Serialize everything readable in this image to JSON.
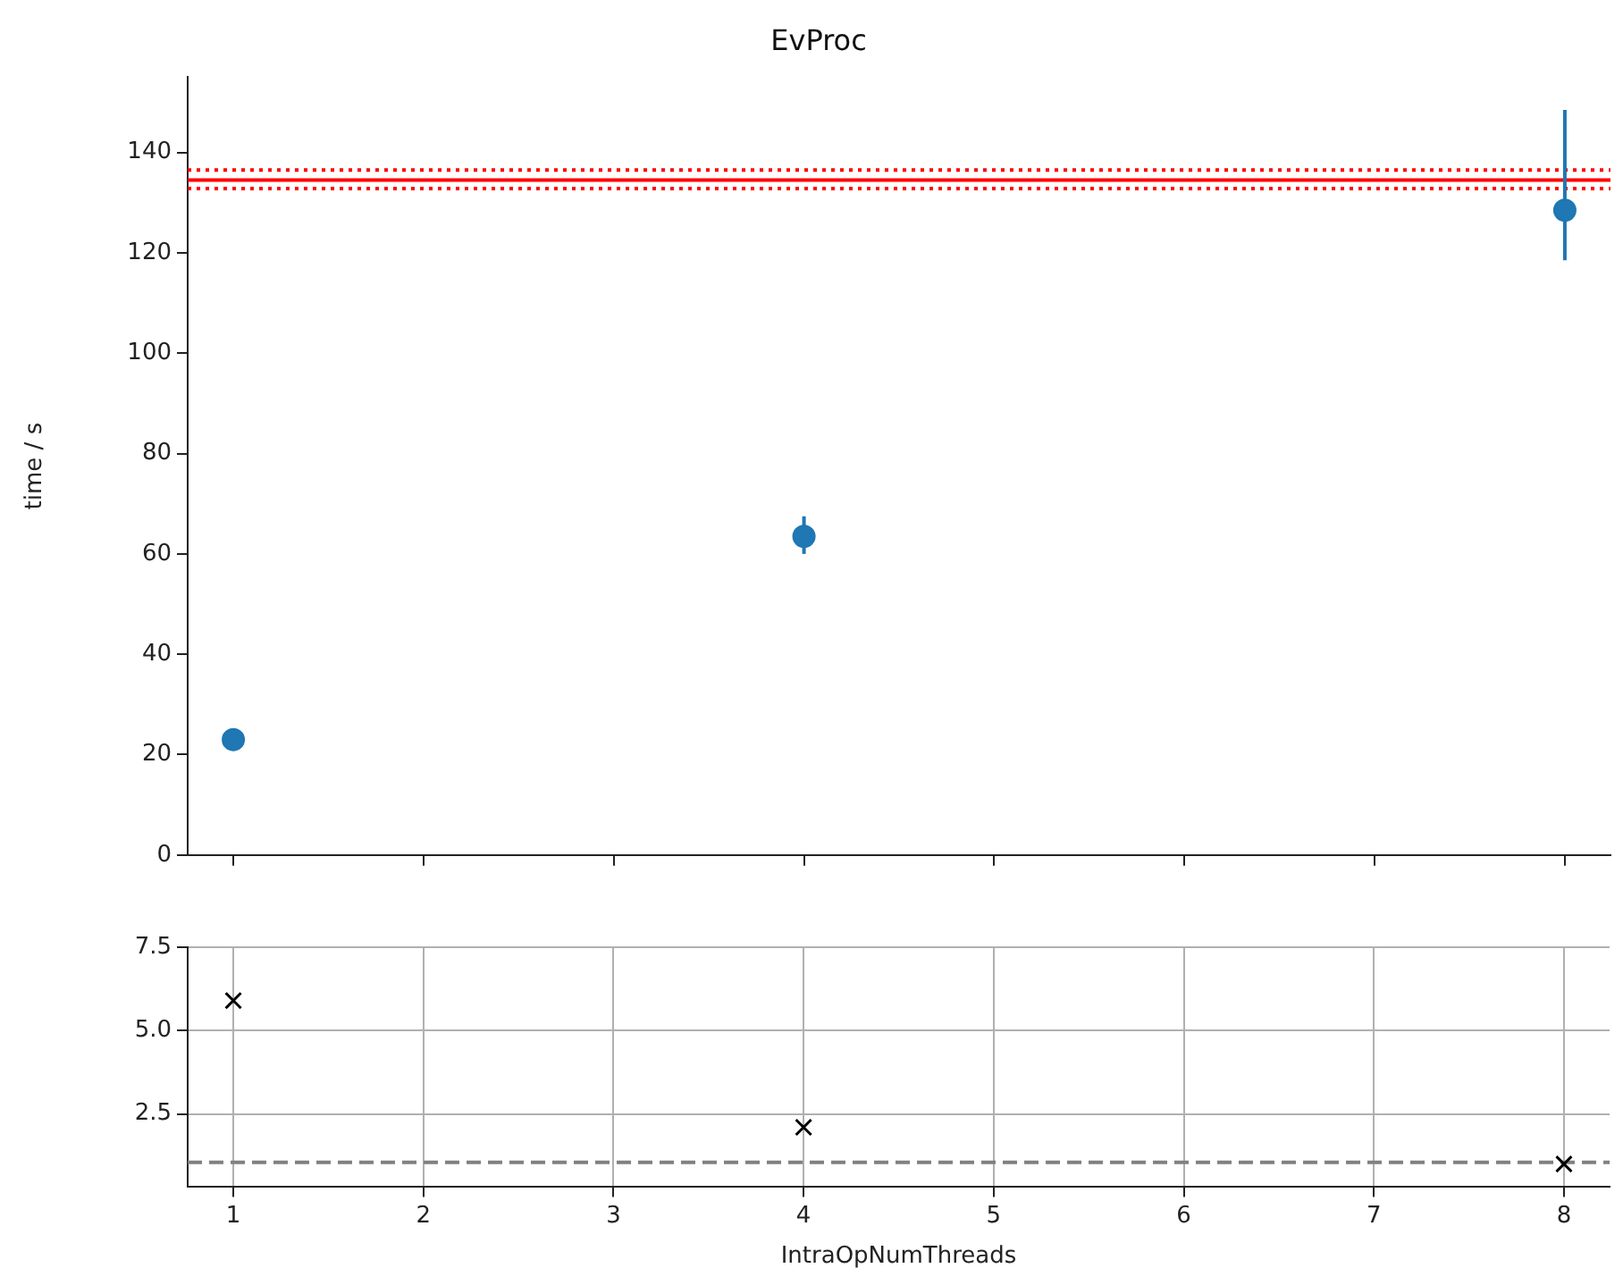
{
  "chart_data": [
    {
      "type": "scatter",
      "title": "EvProc",
      "ylabel": "time / s",
      "x": [
        1,
        4,
        8
      ],
      "series": [
        {
          "color": "#1f77b4",
          "values": [
            23,
            63.5,
            128.5
          ],
          "errors": [
            null,
            [
              60,
              67.5
            ],
            [
              118.5,
              148.5
            ]
          ]
        }
      ],
      "xlim": [
        0.76,
        8.24
      ],
      "xticks": [
        1,
        2,
        3,
        4,
        5,
        6,
        7,
        8
      ],
      "ylim": [
        0,
        155
      ],
      "yticks": [
        0,
        20,
        40,
        60,
        80,
        100,
        120,
        140
      ],
      "tick_labels": "y",
      "marker": "circle",
      "grid": false,
      "legend": false,
      "ref_lines": [
        {
          "axis": "y",
          "value": 134.5,
          "color": "#ff0000",
          "line_style": "solid"
        },
        {
          "axis": "y",
          "value": 132.8,
          "color": "#ff0000",
          "line_style": "dotted"
        },
        {
          "axis": "y",
          "value": 136.5,
          "color": "#ff0000",
          "line_style": "dotted"
        }
      ]
    },
    {
      "type": "scatter",
      "xlabel": "IntraOpNumThreads",
      "x": [
        1,
        4,
        8
      ],
      "series": [
        {
          "color": "#000000",
          "values": [
            5.9,
            2.1,
            1.0
          ]
        }
      ],
      "xlim": [
        0.76,
        8.24
      ],
      "xticks": [
        1,
        2,
        3,
        4,
        5,
        6,
        7,
        8
      ],
      "ylim": [
        0.33,
        7.5
      ],
      "yticks": [
        2.5,
        {
          "value": 5,
          "label": "5.0"
        },
        7.5
      ],
      "marker": "cross",
      "grid": true,
      "legend": false,
      "ref_lines": [
        {
          "axis": "y",
          "value": 1.05,
          "color": "#808080",
          "line_style": "dashed"
        }
      ]
    }
  ]
}
